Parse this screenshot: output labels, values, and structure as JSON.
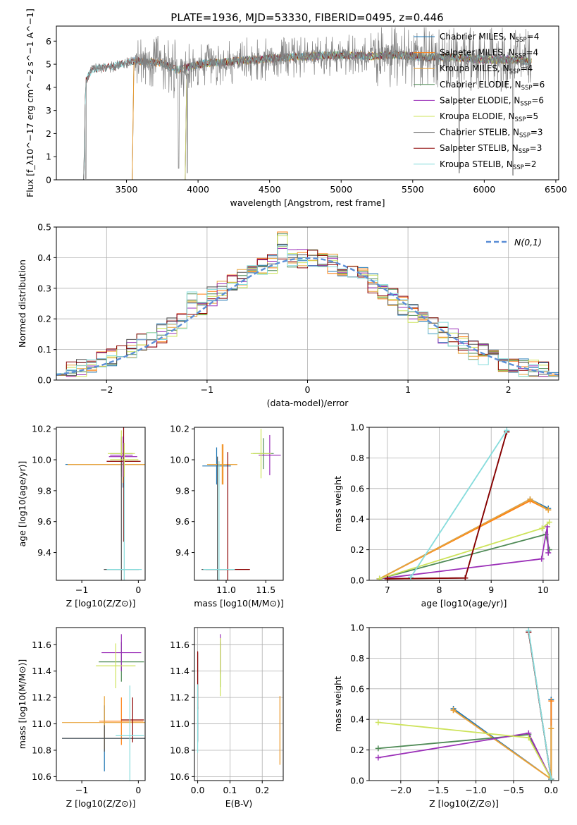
{
  "figure": {
    "title": "PLATE=1936, MJD=53330, FIBERID=0495, z=0.446"
  },
  "colors": {
    "chabrier_miles": "#1f77b4",
    "salpeter_miles": "#ff7f0e",
    "kroupa_miles": "#e8a33a",
    "chabrier_elodie": "#4e8a55",
    "salpeter_elodie": "#9b30b8",
    "kroupa_elodie": "#cde35a",
    "chabrier_stelib": "#555555",
    "salpeter_stelib": "#8b0000",
    "kroupa_stelib": "#86dcdc",
    "normal": "#5b8ed6",
    "grid": "#b0b0b0"
  },
  "chart_data": [
    {
      "id": "spectrum",
      "type": "line",
      "xlabel": "wavelength [Angstrom, rest frame]",
      "ylabel": "Flux [f_λ10^−17 erg cm^−2 s^−1 A^−1]",
      "xlim": [
        3010,
        6520
      ],
      "ylim": [
        0,
        6.65
      ],
      "xticks": [
        3500,
        4000,
        4500,
        5000,
        5500,
        6000,
        6500
      ],
      "yticks": [
        0,
        1,
        2,
        3,
        4,
        5,
        6
      ],
      "grid": false,
      "legend": "top-right",
      "legend_entries": [
        {
          "label": "Chabrier MILES, N",
          "sub": "SSP",
          "tail": "=4",
          "color": "#1f77b4"
        },
        {
          "label": "Salpeter MILES, N",
          "sub": "SSP",
          "tail": "=4",
          "color": "#ff7f0e"
        },
        {
          "label": "Kroupa MILES, N",
          "sub": "SSP",
          "tail": "=4",
          "color": "#e8a33a"
        },
        {
          "label": "Chabrier ELODIE, N",
          "sub": "SSP",
          "tail": "=6",
          "color": "#4e8a55"
        },
        {
          "label": "Salpeter ELODIE, N",
          "sub": "SSP",
          "tail": "=6",
          "color": "#9b30b8"
        },
        {
          "label": "Kroupa ELODIE, N",
          "sub": "SSP",
          "tail": "=5",
          "color": "#cde35a"
        },
        {
          "label": "Chabrier STELIB, N",
          "sub": "SSP",
          "tail": "=3",
          "color": "#555555"
        },
        {
          "label": "Salpeter STELIB, N",
          "sub": "SSP",
          "tail": "=3",
          "color": "#8b0000"
        },
        {
          "label": "Kroupa STELIB, N",
          "sub": "SSP",
          "tail": "=2",
          "color": "#86dcdc"
        }
      ],
      "observed": {
        "name": "data",
        "color": "#808080",
        "wavelength_range": [
          3200,
          6330
        ],
        "continuum": [
          [
            3200,
            0.1
          ],
          [
            3215,
            4.3
          ],
          [
            3260,
            4.8
          ],
          [
            3350,
            4.85
          ],
          [
            3450,
            4.95
          ],
          [
            3550,
            5.15
          ],
          [
            3650,
            5.1
          ],
          [
            3750,
            5.05
          ],
          [
            3850,
            4.75
          ],
          [
            3950,
            4.9
          ],
          [
            4050,
            5.05
          ],
          [
            4200,
            5.1
          ],
          [
            4400,
            5.2
          ],
          [
            4600,
            5.3
          ],
          [
            4800,
            5.35
          ],
          [
            5000,
            5.4
          ],
          [
            5200,
            5.35
          ],
          [
            5400,
            5.4
          ],
          [
            5600,
            5.3
          ],
          [
            5800,
            5.3
          ],
          [
            6000,
            5.2
          ],
          [
            6200,
            5.2
          ],
          [
            6330,
            5.1
          ]
        ],
        "deep_features": [
          [
            3215,
            0.05
          ],
          [
            3865,
            0.5
          ],
          [
            3925,
            0.3
          ],
          [
            5825,
            0.3
          ],
          [
            6200,
            0.2
          ]
        ]
      },
      "models": {
        "wavelength_ranges": {
          "Chabrier MILES": [
            3540,
            6330
          ],
          "Salpeter MILES": [
            3540,
            6330
          ],
          "Kroupa MILES": [
            3540,
            6330
          ],
          "Chabrier ELODIE": [
            3910,
            6330
          ],
          "Salpeter ELODIE": [
            3910,
            6330
          ],
          "Kroupa ELODIE": [
            3910,
            6330
          ],
          "Chabrier STELIB": [
            3200,
            6330
          ],
          "Salpeter STELIB": [
            3200,
            6330
          ],
          "Kroupa STELIB": [
            3200,
            6330
          ]
        }
      }
    },
    {
      "id": "residuals",
      "type": "bar",
      "subtype": "step-histogram",
      "xlabel": "(data-model)/error",
      "ylabel": "Normed distribution",
      "xlim": [
        -2.5,
        2.5
      ],
      "ylim": [
        0,
        0.5
      ],
      "xticks": [
        -2,
        -1,
        0,
        1,
        2
      ],
      "yticks": [
        0.0,
        0.1,
        0.2,
        0.3,
        0.4,
        0.5
      ],
      "grid": true,
      "legend": "top-right",
      "legend_label": "N(0,1)",
      "bin_width": 0.1,
      "bin_start": -2.5,
      "base_profile": [
        0.018,
        0.025,
        0.033,
        0.038,
        0.05,
        0.065,
        0.075,
        0.075,
        0.08,
        0.085,
        0.09,
        0.1,
        0.11,
        0.12,
        0.14,
        0.16,
        0.19,
        0.21,
        0.24,
        0.22,
        0.23,
        0.25,
        0.27,
        0.29,
        0.31,
        0.33,
        0.34,
        0.35,
        0.37,
        0.38,
        0.39,
        0.37,
        0.36,
        0.38,
        0.37,
        0.39,
        0.38,
        0.37,
        0.36,
        0.34,
        0.33,
        0.33,
        0.31,
        0.3,
        0.28,
        0.27,
        0.25,
        0.23,
        0.21,
        0.2,
        0.17,
        0.15,
        0.14,
        0.13,
        0.12,
        0.11,
        0.1,
        0.09,
        0.08,
        0.075,
        0.07,
        0.065,
        0.06,
        0.055,
        0.05,
        0.045,
        0.04,
        0.035,
        0.03,
        0.025,
        0.022,
        0.02,
        0.02,
        0.02,
        0.018,
        0.017,
        0.016,
        0.015,
        0.015,
        0.015,
        0.015,
        0.015,
        0.015,
        0.015,
        0.015,
        0.015,
        0.015,
        0.015,
        0.015,
        0.015,
        0.015,
        0.015,
        0.015,
        0.015,
        0.015,
        0.015,
        0.015,
        0.015,
        0.015,
        0.015
      ],
      "normal": {
        "mu": 0,
        "sigma": 1,
        "color": "#5b8ed6",
        "style": "dashed"
      }
    },
    {
      "id": "age_vs_z",
      "type": "scatter",
      "subtype": "error-bars",
      "xlabel": "Z [log10(Z/Z⊙)]",
      "ylabel": "age [log10(age/yr)]",
      "xlim": [
        -1.45,
        0.12
      ],
      "ylim": [
        9.22,
        10.21
      ],
      "xticks": [
        -1,
        0
      ],
      "yticks": [
        9.4,
        9.6,
        9.8,
        10.0,
        10.2
      ],
      "grid": false,
      "points": [
        {
          "model": "Chabrier MILES",
          "x": -0.27,
          "xerr": 1.02,
          "y": 9.97,
          "yerr": 0.15
        },
        {
          "model": "Salpeter MILES",
          "x": -0.27,
          "xerr": 0.98,
          "y": 9.97,
          "yerr": 0.12
        },
        {
          "model": "Kroupa MILES",
          "x": -0.27,
          "xerr": 0.98,
          "y": 9.97,
          "yerr": 0.12
        },
        {
          "model": "Chabrier ELODIE",
          "x": -0.3,
          "xerr": 0.2,
          "y": 10.04,
          "yerr": 0.11
        },
        {
          "model": "Salpeter ELODIE",
          "x": -0.3,
          "xerr": 0.2,
          "y": 10.03,
          "yerr": 0.11
        },
        {
          "model": "Kroupa ELODIE",
          "x": -0.3,
          "xerr": 0.24,
          "y": 10.04,
          "yerr": 0.15
        },
        {
          "model": "Chabrier STELIB",
          "x": -0.3,
          "xerr": 0.31,
          "y": 9.29,
          "yerr": 0.73
        },
        {
          "model": "Salpeter STELIB",
          "x": -0.26,
          "xerr": 0.3,
          "y": 9.99,
          "yerr": 0.52
        },
        {
          "model": "Kroupa STELIB",
          "x": -0.25,
          "xerr": 0.31,
          "y": 9.29,
          "yerr": 0.7
        },
        {
          "model": "Salpeter ELODIE",
          "x": -0.27,
          "xerr": 0.25,
          "y": 10.02,
          "yerr": 0.13
        },
        {
          "model": "Kroupa ELODIE",
          "x": -0.25,
          "xerr": 0.25,
          "y": 10.0,
          "yerr": 0.11
        }
      ]
    },
    {
      "id": "age_vs_mass",
      "type": "scatter",
      "subtype": "error-bars",
      "xlabel": "mass [log10(M/M⊙)]",
      "ylabel": "",
      "xlim": [
        10.6,
        11.72
      ],
      "ylim": [
        9.22,
        10.21
      ],
      "xticks": [
        11.0,
        11.5
      ],
      "yticks": [
        9.4,
        9.6,
        9.8,
        10.0,
        10.2
      ],
      "grid": false,
      "points": [
        {
          "model": "Chabrier MILES",
          "x": 10.88,
          "xerr": 0.18,
          "y": 9.96,
          "yerr": 0.12
        },
        {
          "model": "Salpeter MILES",
          "x": 10.96,
          "xerr": 0.18,
          "y": 9.97,
          "yerr": 0.13
        },
        {
          "model": "Kroupa MILES",
          "x": 10.95,
          "xerr": 0.19,
          "y": 9.97,
          "yerr": 0.13
        },
        {
          "model": "Chabrier ELODIE",
          "x": 11.47,
          "xerr": 0.13,
          "y": 10.04,
          "yerr": 0.1
        },
        {
          "model": "Salpeter ELODIE",
          "x": 11.55,
          "xerr": 0.14,
          "y": 10.03,
          "yerr": 0.13
        },
        {
          "model": "Kroupa ELODIE",
          "x": 11.44,
          "xerr": 0.13,
          "y": 10.04,
          "yerr": 0.16
        },
        {
          "model": "Chabrier STELIB",
          "x": 10.89,
          "xerr": 0.2,
          "y": 9.29,
          "yerr": 0.73
        },
        {
          "model": "Salpeter STELIB",
          "x": 11.02,
          "xerr": 0.28,
          "y": 9.29,
          "yerr": 0.76
        },
        {
          "model": "Kroupa STELIB",
          "x": 10.91,
          "xerr": 0.2,
          "y": 9.29,
          "yerr": 0.7
        }
      ]
    },
    {
      "id": "massweight_vs_age",
      "type": "line",
      "xlabel": "age [log10(age/yr)]",
      "ylabel": "mass weight",
      "xlim": [
        6.65,
        10.3
      ],
      "ylim": [
        0,
        1.0
      ],
      "xticks": [
        7,
        8,
        9,
        10
      ],
      "yticks": [
        0.0,
        0.2,
        0.4,
        0.6,
        0.8,
        1.0
      ],
      "grid": true,
      "series": [
        {
          "model": "Chabrier MILES",
          "x": [
            6.85,
            9.75,
            10.1
          ],
          "y": [
            0.01,
            0.53,
            0.47
          ]
        },
        {
          "model": "Salpeter MILES",
          "x": [
            6.85,
            9.75,
            10.1
          ],
          "y": [
            0.01,
            0.52,
            0.46
          ]
        },
        {
          "model": "Kroupa MILES",
          "x": [
            6.85,
            9.75,
            10.1
          ],
          "y": [
            0.01,
            0.53,
            0.46
          ]
        },
        {
          "model": "Chabrier ELODIE",
          "x": [
            6.85,
            10.05,
            10.12
          ],
          "y": [
            0.01,
            0.3,
            0.2
          ]
        },
        {
          "model": "Salpeter ELODIE",
          "x": [
            6.85,
            9.97,
            10.08,
            10.1
          ],
          "y": [
            0.01,
            0.14,
            0.35,
            0.18
          ]
        },
        {
          "model": "Kroupa ELODIE",
          "x": [
            6.85,
            9.98,
            10.12
          ],
          "y": [
            0.01,
            0.34,
            0.38
          ]
        },
        {
          "model": "Chabrier STELIB",
          "x": [
            7.0,
            8.5,
            9.3
          ],
          "y": [
            0.01,
            0.015,
            0.97
          ]
        },
        {
          "model": "Salpeter STELIB",
          "x": [
            7.0,
            8.5,
            9.3
          ],
          "y": [
            0.01,
            0.015,
            0.97
          ]
        },
        {
          "model": "Kroupa STELIB",
          "x": [
            7.45,
            9.3
          ],
          "y": [
            0.02,
            0.98
          ]
        }
      ]
    },
    {
      "id": "mass_vs_z",
      "type": "scatter",
      "subtype": "error-bars",
      "xlabel": "Z [log10(Z/Z⊙)]",
      "ylabel": "mass [log10(M/M⊙)]",
      "xlim": [
        -1.45,
        0.12
      ],
      "ylim": [
        10.57,
        11.73
      ],
      "xticks": [
        -1,
        0
      ],
      "yticks": [
        10.6,
        10.8,
        11.0,
        11.2,
        11.4,
        11.6
      ],
      "grid": false,
      "points": [
        {
          "model": "Chabrier MILES",
          "x": -0.6,
          "xerr": 0.75,
          "y": 10.89,
          "yerr": 0.25
        },
        {
          "model": "Salpeter MILES",
          "x": -0.3,
          "xerr": 0.39,
          "y": 11.02,
          "yerr": 0.18
        },
        {
          "model": "Kroupa MILES",
          "x": -0.6,
          "xerr": 0.75,
          "y": 11.01,
          "yerr": 0.2
        },
        {
          "model": "Chabrier ELODIE",
          "x": -0.3,
          "xerr": 0.4,
          "y": 11.47,
          "yerr": 0.15
        },
        {
          "model": "Salpeter ELODIE",
          "x": -0.3,
          "xerr": 0.35,
          "y": 11.54,
          "yerr": 0.14
        },
        {
          "model": "Kroupa ELODIE",
          "x": -0.4,
          "xerr": 0.35,
          "y": 11.44,
          "yerr": 0.17
        },
        {
          "model": "Chabrier STELIB",
          "x": -0.6,
          "xerr": 0.75,
          "y": 10.89,
          "yerr": 0.1
        },
        {
          "model": "Salpeter STELIB",
          "x": -0.1,
          "xerr": 0.2,
          "y": 11.03,
          "yerr": 0.17
        },
        {
          "model": "Kroupa STELIB",
          "x": -0.15,
          "xerr": 0.25,
          "y": 10.91,
          "yerr": 0.38
        }
      ]
    },
    {
      "id": "mass_vs_ebv",
      "type": "scatter",
      "subtype": "error-bars",
      "xlabel": "E(B-V)",
      "ylabel": "",
      "xlim": [
        -0.01,
        0.265
      ],
      "ylim": [
        10.57,
        11.73
      ],
      "xticks": [
        0.0,
        0.1,
        0.2
      ],
      "yticks": [
        10.6,
        10.8,
        11.0,
        11.2,
        11.4,
        11.6
      ],
      "grid": true,
      "points": [
        {
          "model": "Chabrier MILES",
          "x": 0.0,
          "y": 11.0,
          "yerr": 0.13
        },
        {
          "model": "Salpeter MILES",
          "x": 0.255,
          "y": 10.95,
          "yerr": 0.26
        },
        {
          "model": "Kroupa MILES",
          "x": 0.255,
          "y": 10.95,
          "yerr": 0.26
        },
        {
          "model": "Chabrier ELODIE",
          "x": 0.07,
          "y": 11.45,
          "yerr": 0.17
        },
        {
          "model": "Salpeter ELODIE",
          "x": 0.07,
          "y": 11.53,
          "yerr": 0.15
        },
        {
          "model": "Kroupa ELODIE",
          "x": 0.07,
          "y": 11.43,
          "yerr": 0.22
        },
        {
          "model": "Chabrier STELIB",
          "x": 0.0,
          "y": 11.2,
          "yerr": 0.34
        },
        {
          "model": "Salpeter STELIB",
          "x": 0.0,
          "y": 11.33,
          "yerr": 0.22
        },
        {
          "model": "Kroupa STELIB",
          "x": 0.0,
          "y": 11.04,
          "yerr": 0.26
        }
      ]
    },
    {
      "id": "massweight_vs_z",
      "type": "line",
      "xlabel": "Z [log10(Z/Z⊙)]",
      "ylabel": "mass weight",
      "xlim": [
        -2.42,
        0.1
      ],
      "ylim": [
        0,
        1.0
      ],
      "xticks": [
        -2.0,
        -1.5,
        -1.0,
        -0.5,
        0.0
      ],
      "yticks": [
        0.0,
        0.2,
        0.4,
        0.6,
        0.8,
        1.0
      ],
      "grid": true,
      "series": [
        {
          "model": "Chabrier MILES",
          "x": [
            -1.3,
            0.0,
            0.0
          ],
          "y": [
            0.47,
            0.01,
            0.53
          ]
        },
        {
          "model": "Salpeter MILES",
          "x": [
            -1.3,
            0.0,
            0.0
          ],
          "y": [
            0.46,
            0.01,
            0.52
          ]
        },
        {
          "model": "Kroupa MILES",
          "x": [
            -1.3,
            0.0,
            0.0
          ],
          "y": [
            0.46,
            0.01,
            0.34
          ]
        },
        {
          "model": "Chabrier ELODIE",
          "x": [
            -2.3,
            -0.3,
            0.0
          ],
          "y": [
            0.21,
            0.3,
            0.01
          ]
        },
        {
          "model": "Salpeter ELODIE",
          "x": [
            -2.3,
            -0.3,
            0.0
          ],
          "y": [
            0.15,
            0.31,
            0.01
          ]
        },
        {
          "model": "Kroupa ELODIE",
          "x": [
            -2.3,
            -0.3,
            0.0
          ],
          "y": [
            0.38,
            0.28,
            0.01
          ]
        },
        {
          "model": "Chabrier STELIB",
          "x": [
            -0.3,
            0.0
          ],
          "y": [
            0.97,
            0.01
          ]
        },
        {
          "model": "Salpeter STELIB",
          "x": [
            -0.3,
            0.0
          ],
          "y": [
            0.97,
            0.01
          ]
        },
        {
          "model": "Kroupa STELIB",
          "x": [
            -0.3,
            0.0
          ],
          "y": [
            0.98,
            0.01
          ]
        }
      ]
    }
  ]
}
